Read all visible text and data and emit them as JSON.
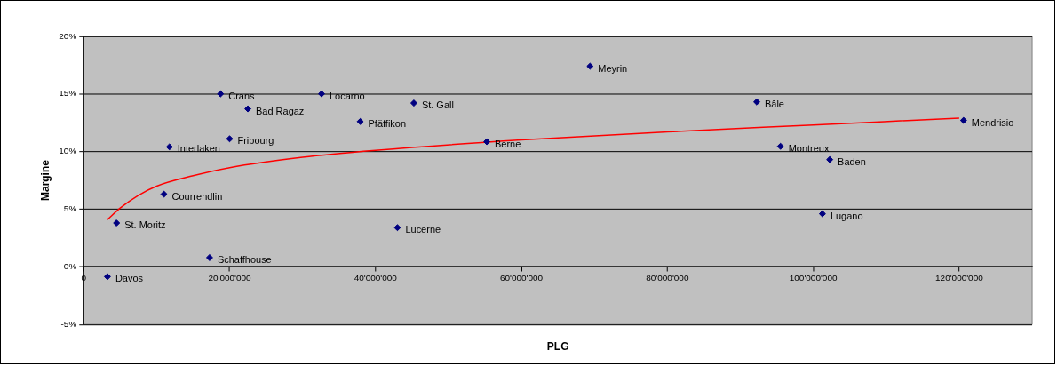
{
  "chart_data": {
    "type": "scatter",
    "xlabel": "PLG",
    "ylabel": "Margine",
    "xlim": [
      0,
      130000000
    ],
    "ylim": [
      -5,
      20
    ],
    "xticks": [
      0,
      {
        "value": 20000000,
        "label": "20'000'000"
      },
      {
        "value": 40000000,
        "label": "40'000'000"
      },
      {
        "value": 60000000,
        "label": "60'000'000"
      },
      {
        "value": 80000000,
        "label": "80'000'000"
      },
      {
        "value": 100000000,
        "label": "100'000'000"
      },
      {
        "value": 120000000,
        "label": "120'000'000"
      }
    ],
    "yticks": [
      {
        "value": -5,
        "label": "-5%"
      },
      {
        "value": 0,
        "label": "0%"
      },
      {
        "value": 5,
        "label": "5%"
      },
      {
        "value": 10,
        "label": "10%"
      },
      {
        "value": 15,
        "label": "15%"
      },
      {
        "value": 20,
        "label": "20%"
      }
    ],
    "grid": "y",
    "legend": false,
    "series": [
      {
        "color": "#000080",
        "marker": "diamond",
        "x": [
          3250000,
          4500000,
          11000000,
          11750000,
          17250000,
          18750000,
          20000000,
          22500000,
          32600000,
          37900000,
          45250000,
          43000000,
          55250000,
          69400000,
          92250000,
          95500000,
          102250000,
          101250000,
          120600000
        ],
        "values": [
          -0.85,
          3.8,
          6.3,
          10.4,
          0.8,
          15.0,
          11.1,
          13.7,
          15.0,
          12.6,
          14.2,
          3.4,
          10.85,
          17.4,
          14.3,
          10.45,
          9.3,
          4.6,
          12.7
        ]
      },
      {
        "type": "line",
        "color": "#ff0000",
        "marker": "none",
        "line_style": "solid",
        "x": [
          3250000,
          5000000,
          7500000,
          10000000,
          15000000,
          20000000,
          30000000,
          40000000,
          60000000,
          80000000,
          100000000,
          120000000
        ],
        "values": [
          4.1,
          5.1,
          6.2,
          7.0,
          7.9,
          8.6,
          9.5,
          10.1,
          11.0,
          11.7,
          12.3,
          12.9
        ]
      }
    ],
    "annotations": [
      {
        "text": "Davos",
        "x": 3250000,
        "y": -0.85
      },
      {
        "text": "St. Moritz",
        "x": 4500000,
        "y": 3.8
      },
      {
        "text": "Courrendlin",
        "x": 11000000,
        "y": 6.3
      },
      {
        "text": "Interlaken",
        "x": 11750000,
        "y": 10.4
      },
      {
        "text": "Schaffhouse",
        "x": 17250000,
        "y": 0.8
      },
      {
        "text": "Crans",
        "x": 18750000,
        "y": 15.0
      },
      {
        "text": "Fribourg",
        "x": 20000000,
        "y": 11.1
      },
      {
        "text": "Bad Ragaz",
        "x": 22500000,
        "y": 13.7
      },
      {
        "text": "Locarno",
        "x": 32600000,
        "y": 15.0
      },
      {
        "text": "Pfäffikon",
        "x": 37900000,
        "y": 12.6
      },
      {
        "text": "St. Gall",
        "x": 45250000,
        "y": 14.2
      },
      {
        "text": "Lucerne",
        "x": 43000000,
        "y": 3.4
      },
      {
        "text": "Berne",
        "x": 55250000,
        "y": 10.85
      },
      {
        "text": "Meyrin",
        "x": 69400000,
        "y": 17.4
      },
      {
        "text": "Bâle",
        "x": 92250000,
        "y": 14.3
      },
      {
        "text": "Montreux",
        "x": 95500000,
        "y": 10.45
      },
      {
        "text": "Baden",
        "x": 102250000,
        "y": 9.3
      },
      {
        "text": "Lugano",
        "x": 101250000,
        "y": 4.6
      },
      {
        "text": "Mendrisio",
        "x": 120600000,
        "y": 12.7
      }
    ]
  }
}
